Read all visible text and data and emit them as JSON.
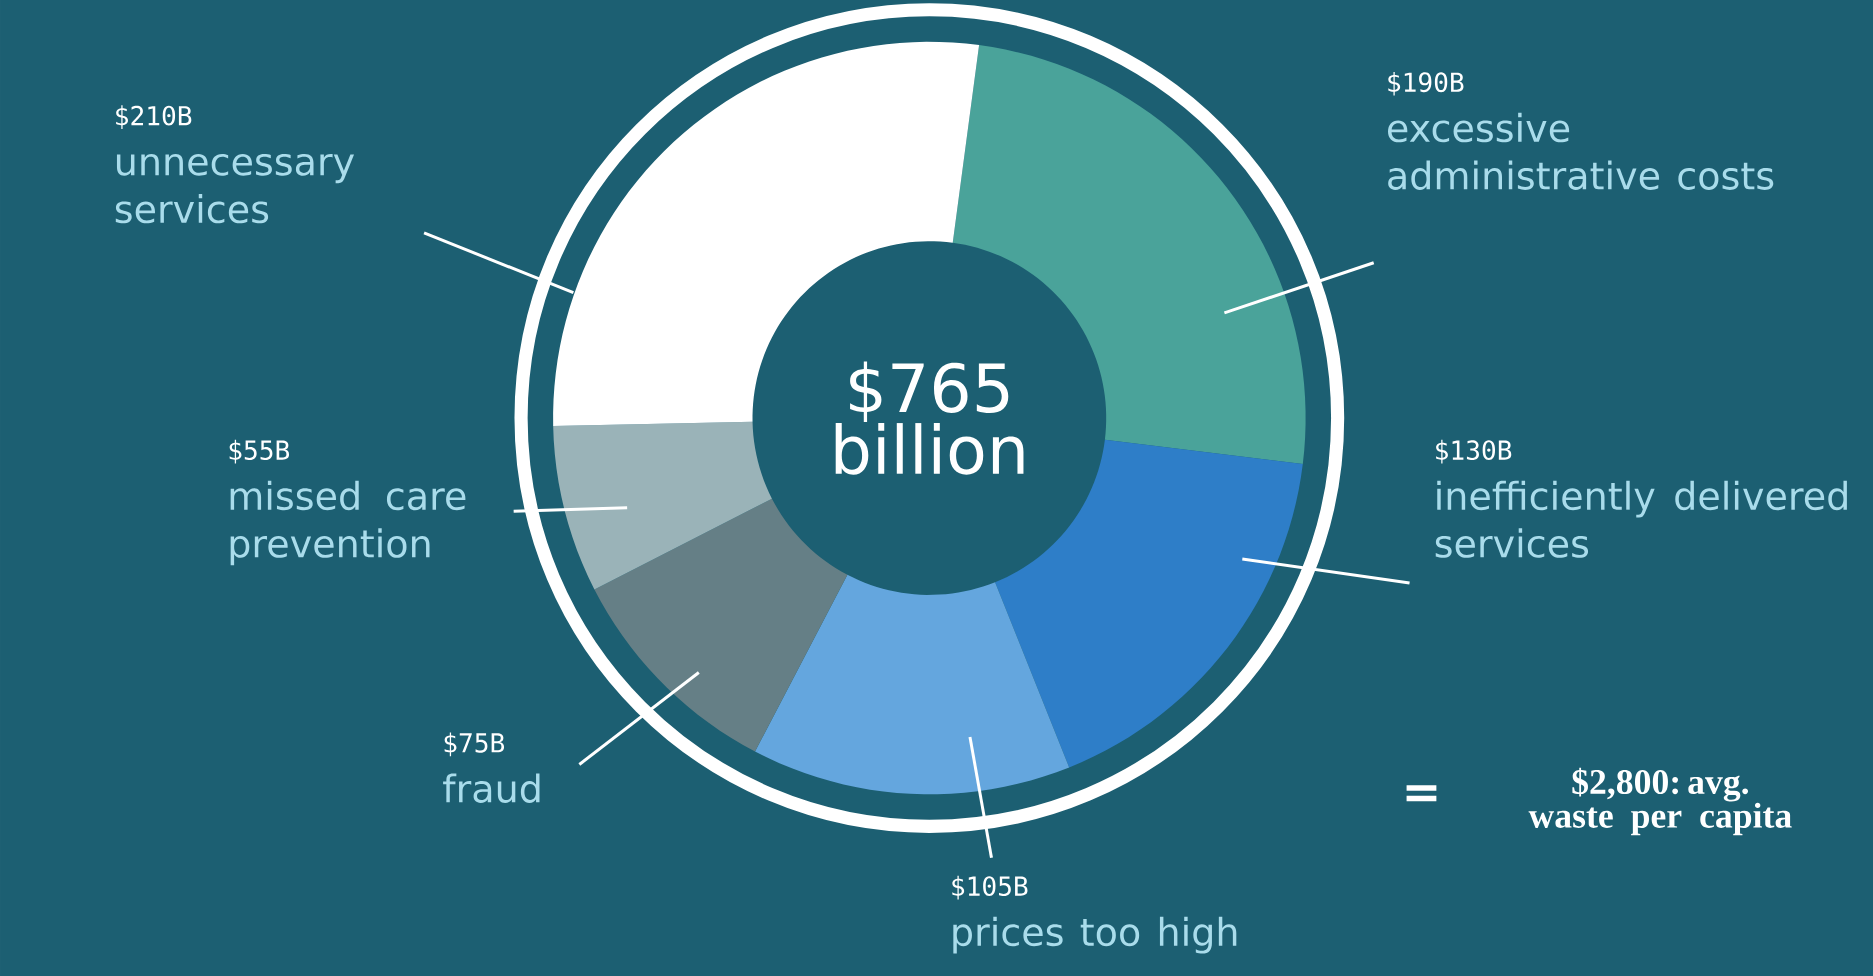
{
  "chart_data": {
    "type": "donut",
    "categories": [
      "excessive administrative costs",
      "inefficiently delivered services",
      "prices too high",
      "fraud",
      "missed care prevention",
      "unnecessary services"
    ],
    "values": [
      190,
      130,
      105,
      75,
      55,
      210
    ],
    "value_labels": [
      "$190B",
      "$130B",
      "$105B",
      "$75B",
      "$55B",
      "$210B"
    ],
    "colors": [
      "#4aa39a",
      "#2e7ec8",
      "#64a6de",
      "#657f86",
      "#9ab3b8",
      "#ffffff"
    ],
    "annotations": [
      "$765 billion",
      "=",
      "$2,800: avg. waste per capita"
    ],
    "legend": false
  }
}
